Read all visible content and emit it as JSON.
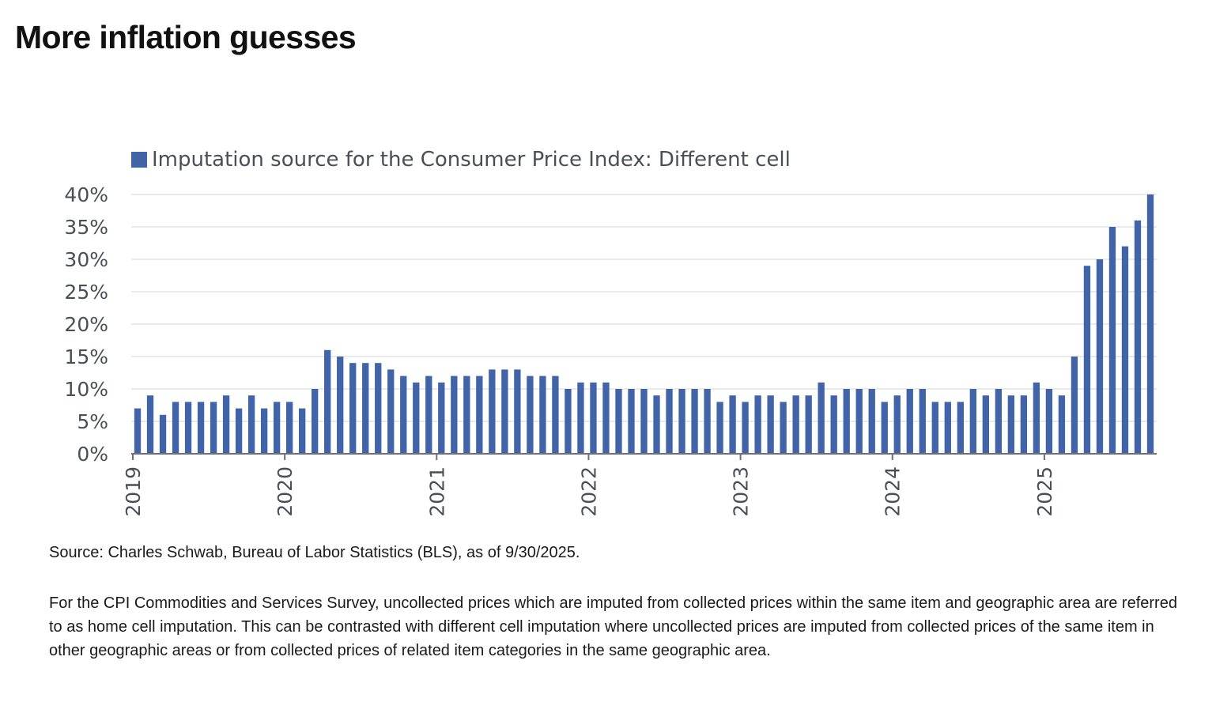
{
  "header": {
    "title": "More inflation guesses"
  },
  "chart_data": {
    "type": "bar",
    "legend": [
      "Imputation source for the Consumer Price Index: Different cell"
    ],
    "legend_position": "top-left",
    "series": [
      {
        "name": "Imputation source for the Consumer Price Index: Different cell",
        "color": "#4163a8",
        "x": [
          "2019-01",
          "2019-02",
          "2019-03",
          "2019-04",
          "2019-05",
          "2019-06",
          "2019-07",
          "2019-08",
          "2019-09",
          "2019-10",
          "2019-11",
          "2019-12",
          "2020-01",
          "2020-02",
          "2020-03",
          "2020-04",
          "2020-05",
          "2020-06",
          "2020-07",
          "2020-08",
          "2020-09",
          "2020-10",
          "2020-11",
          "2020-12",
          "2021-01",
          "2021-02",
          "2021-03",
          "2021-04",
          "2021-05",
          "2021-06",
          "2021-07",
          "2021-08",
          "2021-09",
          "2021-10",
          "2021-11",
          "2021-12",
          "2022-01",
          "2022-02",
          "2022-03",
          "2022-04",
          "2022-05",
          "2022-06",
          "2022-07",
          "2022-08",
          "2022-09",
          "2022-10",
          "2022-11",
          "2022-12",
          "2023-01",
          "2023-02",
          "2023-03",
          "2023-04",
          "2023-05",
          "2023-06",
          "2023-07",
          "2023-08",
          "2023-09",
          "2023-10",
          "2023-11",
          "2023-12",
          "2024-01",
          "2024-02",
          "2024-03",
          "2024-04",
          "2024-05",
          "2024-06",
          "2024-07",
          "2024-08",
          "2024-09",
          "2024-10",
          "2024-11",
          "2024-12",
          "2025-01",
          "2025-02",
          "2025-03",
          "2025-04",
          "2025-05",
          "2025-06",
          "2025-07",
          "2025-08",
          "2025-09"
        ],
        "values": [
          7,
          9,
          6,
          8,
          8,
          8,
          8,
          9,
          7,
          9,
          7,
          8,
          8,
          7,
          10,
          16,
          15,
          14,
          14,
          14,
          13,
          12,
          11,
          12,
          11,
          12,
          12,
          12,
          13,
          13,
          13,
          12,
          12,
          12,
          10,
          11,
          11,
          11,
          10,
          10,
          10,
          9,
          10,
          10,
          10,
          10,
          8,
          9,
          8,
          9,
          9,
          8,
          9,
          9,
          11,
          9,
          10,
          10,
          10,
          8,
          9,
          10,
          10,
          8,
          8,
          8,
          10,
          9,
          10,
          9,
          9,
          11,
          10,
          9,
          15,
          29,
          30,
          35,
          32,
          36,
          40
        ]
      }
    ],
    "xticks": [
      "2019",
      "2020",
      "2021",
      "2022",
      "2023",
      "2024",
      "2025"
    ],
    "yticks": [
      "0%",
      "5%",
      "10%",
      "15%",
      "20%",
      "25%",
      "30%",
      "35%",
      "40%"
    ],
    "ylim": [
      0,
      40
    ],
    "grid": true
  },
  "footer": {
    "source": "Source: Charles Schwab, Bureau of Labor Statistics (BLS), as of 9/30/2025.",
    "description": "For the CPI Commodities and Services Survey, uncollected prices which are imputed from collected prices within the same item and geographic area are referred to as home cell imputation. This can be contrasted with different cell imputation where uncollected prices are imputed from collected prices of the same item in other geographic areas or from collected prices of related item categories in the same geographic area."
  }
}
